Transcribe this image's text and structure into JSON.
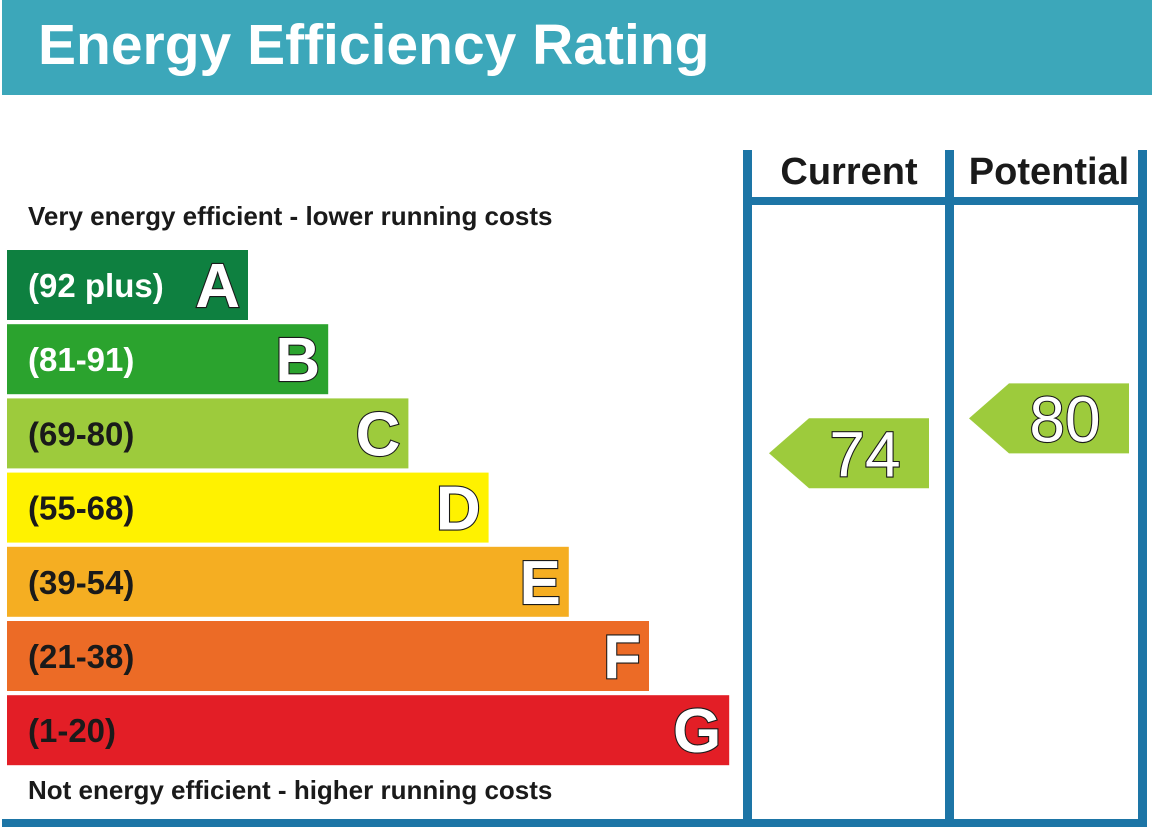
{
  "title": "Energy Efficiency Rating",
  "notes": {
    "top": "Very energy efficient - lower running costs",
    "bottom": "Not energy efficient - higher running costs"
  },
  "columns": {
    "current": "Current",
    "potential": "Potential"
  },
  "colors": {
    "header": "#3ca7ba",
    "frame": "#1d75a6"
  },
  "chart_data": {
    "type": "table",
    "bands": [
      {
        "letter": "A",
        "range": "(92 plus)",
        "min": 92,
        "max": null,
        "color": "#0e8040",
        "text_color": "#ffffff"
      },
      {
        "letter": "B",
        "range": "(81-91)",
        "min": 81,
        "max": 91,
        "color": "#2ba32e",
        "text_color": "#ffffff"
      },
      {
        "letter": "C",
        "range": "(69-80)",
        "min": 69,
        "max": 80,
        "color": "#9dcb3c",
        "text_color": "#1a1a1a"
      },
      {
        "letter": "D",
        "range": "(55-68)",
        "min": 55,
        "max": 68,
        "color": "#fff200",
        "text_color": "#1a1a1a"
      },
      {
        "letter": "E",
        "range": "(39-54)",
        "min": 39,
        "max": 54,
        "color": "#f5ae22",
        "text_color": "#1a1a1a"
      },
      {
        "letter": "F",
        "range": "(21-38)",
        "min": 21,
        "max": 38,
        "color": "#ec6b26",
        "text_color": "#1a1a1a"
      },
      {
        "letter": "G",
        "range": "(1-20)",
        "min": 1,
        "max": 20,
        "color": "#e31e26",
        "text_color": "#1a1a1a"
      }
    ],
    "current": {
      "value": 74,
      "band": "C",
      "color": "#9dcb3c"
    },
    "potential": {
      "value": 80,
      "band": "C",
      "color": "#9dcb3c"
    }
  }
}
